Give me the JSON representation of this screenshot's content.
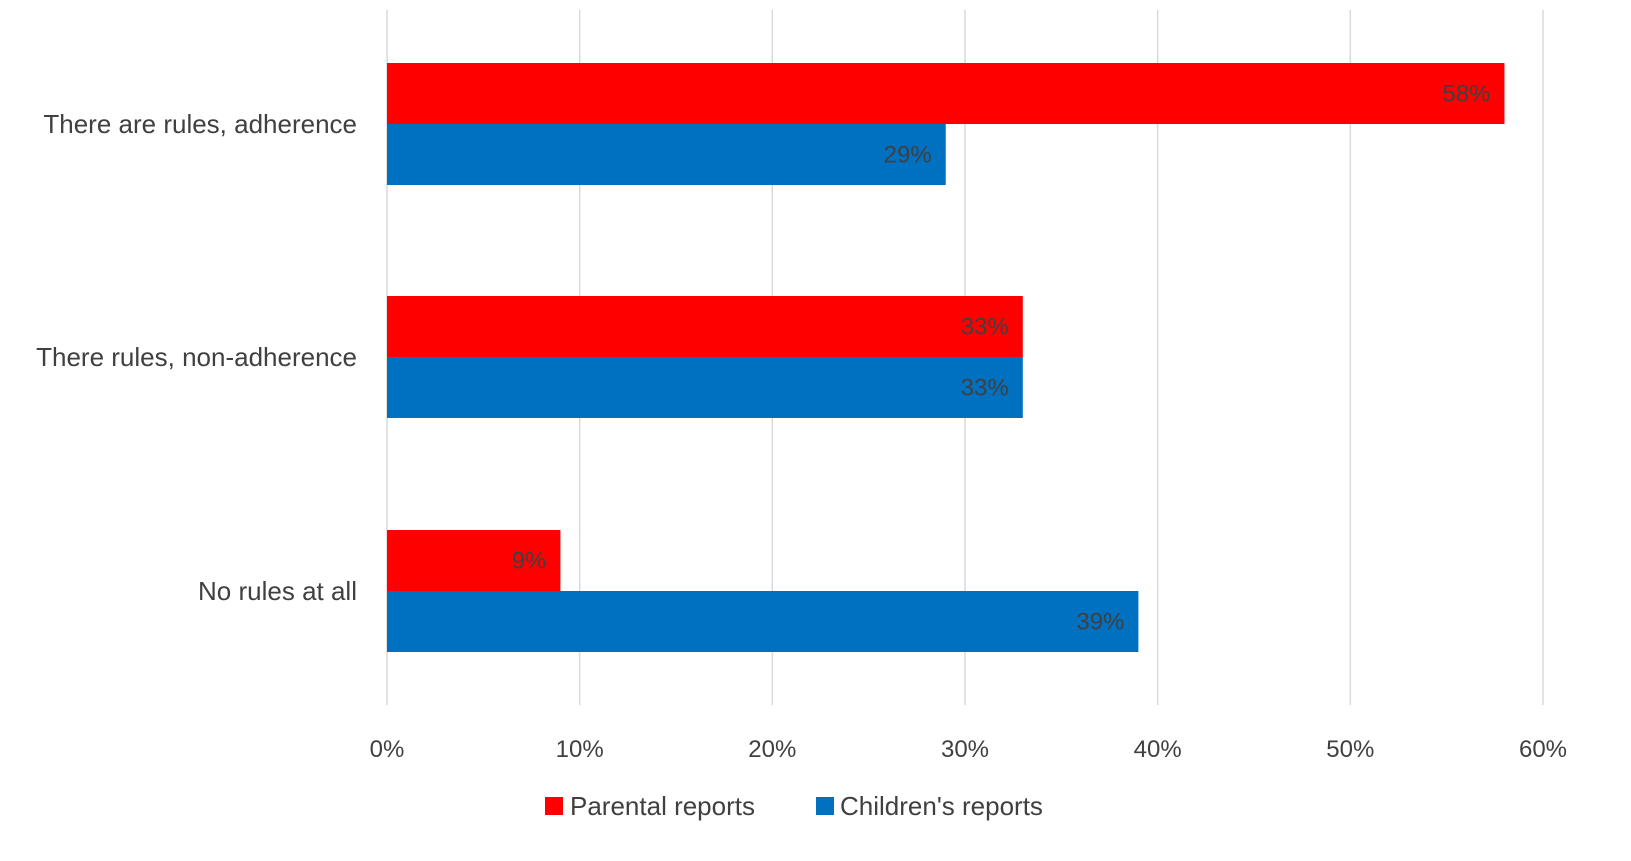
{
  "chart_data": {
    "type": "bar",
    "orientation": "horizontal",
    "categories": [
      "There are rules, adherence",
      "There rules, non-adherence",
      "No rules at all"
    ],
    "series": [
      {
        "name": "Parental reports",
        "color": "#FF0000",
        "values": [
          58,
          33,
          9
        ],
        "labels": [
          "58%",
          "33%",
          "9%"
        ]
      },
      {
        "name": "Children's reports",
        "color": "#0070C0",
        "values": [
          29,
          33,
          39
        ],
        "labels": [
          "29%",
          "33%",
          "39%"
        ]
      }
    ],
    "xlim": [
      0,
      60
    ],
    "xticks": [
      "0%",
      "10%",
      "20%",
      "30%",
      "40%",
      "50%",
      "60%"
    ],
    "grid": true,
    "legend_position": "bottom",
    "title": "",
    "xlabel": "",
    "ylabel": ""
  }
}
